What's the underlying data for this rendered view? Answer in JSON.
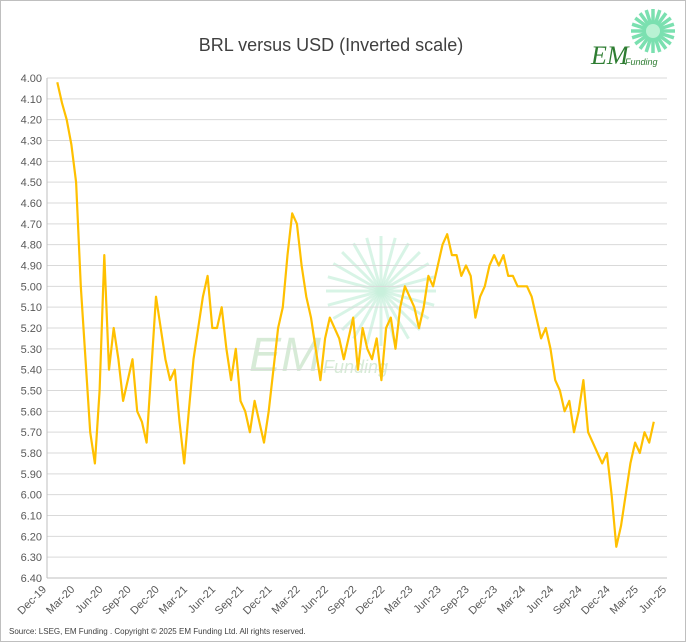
{
  "header": {
    "title": "BRL versus USD (Inverted scale)"
  },
  "logo": {
    "em_text": "EM",
    "funding_text": "Funding",
    "color": "#2e7d32",
    "accent": "#7be0b0"
  },
  "watermark": {
    "em_text": "EM",
    "funding_text": "Funding"
  },
  "footer": {
    "source": "Source: LSEG, EM Funding . Copyright © 2025 EM Funding Ltd. All rights reserved."
  },
  "chart_data": {
    "type": "line",
    "title": "BRL versus USD (Inverted scale)",
    "xlabel": "",
    "ylabel": "",
    "y_inverted": true,
    "ylim": [
      4.0,
      6.4
    ],
    "yticks": [
      "4.00",
      "4.10",
      "4.20",
      "4.30",
      "4.40",
      "4.50",
      "4.60",
      "4.70",
      "4.80",
      "4.90",
      "5.00",
      "5.10",
      "5.20",
      "5.30",
      "5.40",
      "5.50",
      "5.60",
      "5.70",
      "5.80",
      "5.90",
      "6.00",
      "6.10",
      "6.20",
      "6.30",
      "6.40"
    ],
    "xticks": [
      "Dec-19",
      "Mar-20",
      "Jun-20",
      "Sep-20",
      "Dec-20",
      "Mar-21",
      "Jun-21",
      "Sep-21",
      "Dec-21",
      "Mar-22",
      "Jun-22",
      "Sep-22",
      "Dec-22",
      "Mar-23",
      "Jun-23",
      "Sep-23",
      "Dec-23",
      "Mar-24",
      "Jun-24",
      "Sep-24",
      "Dec-24",
      "Mar-25",
      "Jun-25"
    ],
    "xlim": [
      "2019-12",
      "2025-06"
    ],
    "grid": true,
    "line_color": "#ffc000",
    "series": [
      {
        "x": [
          "2020-01",
          "2020-01",
          "2020-02",
          "2020-02",
          "2020-03",
          "2020-03",
          "2020-04",
          "2020-04",
          "2020-05",
          "2020-05",
          "2020-06",
          "2020-06",
          "2020-07",
          "2020-07",
          "2020-08",
          "2020-08",
          "2020-09",
          "2020-09",
          "2020-10",
          "2020-10",
          "2020-11",
          "2020-11",
          "2020-12",
          "2020-12",
          "2021-01",
          "2021-01",
          "2021-02",
          "2021-02",
          "2021-03",
          "2021-03",
          "2021-04",
          "2021-04",
          "2021-05",
          "2021-05",
          "2021-06",
          "2021-06",
          "2021-07",
          "2021-07",
          "2021-08",
          "2021-08",
          "2021-09",
          "2021-09",
          "2021-10",
          "2021-10",
          "2021-11",
          "2021-11",
          "2021-12",
          "2021-12",
          "2022-01",
          "2022-01",
          "2022-02",
          "2022-02",
          "2022-03",
          "2022-03",
          "2022-04",
          "2022-04",
          "2022-05",
          "2022-05",
          "2022-06",
          "2022-06",
          "2022-07",
          "2022-07",
          "2022-08",
          "2022-08",
          "2022-09",
          "2022-09",
          "2022-10",
          "2022-10",
          "2022-11",
          "2022-11",
          "2022-12",
          "2022-12",
          "2023-01",
          "2023-01",
          "2023-02",
          "2023-02",
          "2023-03",
          "2023-03",
          "2023-04",
          "2023-04",
          "2023-05",
          "2023-05",
          "2023-06",
          "2023-06",
          "2023-07",
          "2023-07",
          "2023-08",
          "2023-08",
          "2023-09",
          "2023-09",
          "2023-10",
          "2023-10",
          "2023-11",
          "2023-11",
          "2023-12",
          "2023-12",
          "2024-01",
          "2024-01",
          "2024-02",
          "2024-02",
          "2024-03",
          "2024-03",
          "2024-04",
          "2024-04",
          "2024-05",
          "2024-05",
          "2024-06",
          "2024-06",
          "2024-07",
          "2024-07",
          "2024-08",
          "2024-08",
          "2024-09",
          "2024-09",
          "2024-10",
          "2024-10",
          "2024-11",
          "2024-11",
          "2024-12",
          "2024-12",
          "2025-01",
          "2025-01",
          "2025-02",
          "2025-02",
          "2025-03",
          "2025-03",
          "2025-04",
          "2025-04"
        ],
        "values": [
          4.02,
          4.12,
          4.2,
          4.32,
          4.5,
          5.0,
          5.35,
          5.7,
          5.85,
          5.5,
          4.85,
          5.4,
          5.2,
          5.35,
          5.55,
          5.45,
          5.35,
          5.6,
          5.65,
          5.75,
          5.4,
          5.05,
          5.2,
          5.35,
          5.45,
          5.4,
          5.65,
          5.85,
          5.6,
          5.35,
          5.2,
          5.05,
          4.95,
          5.2,
          5.2,
          5.1,
          5.3,
          5.45,
          5.3,
          5.55,
          5.6,
          5.7,
          5.55,
          5.65,
          5.75,
          5.6,
          5.4,
          5.2,
          5.1,
          4.85,
          4.65,
          4.7,
          4.9,
          5.05,
          5.15,
          5.3,
          5.45,
          5.25,
          5.15,
          5.2,
          5.25,
          5.35,
          5.25,
          5.15,
          5.4,
          5.2,
          5.3,
          5.35,
          5.25,
          5.45,
          5.2,
          5.15,
          5.3,
          5.1,
          5.0,
          5.05,
          5.1,
          5.2,
          5.1,
          4.95,
          5.0,
          4.9,
          4.8,
          4.75,
          4.85,
          4.85,
          4.95,
          4.9,
          4.95,
          5.15,
          5.05,
          5.0,
          4.9,
          4.85,
          4.9,
          4.85,
          4.95,
          4.95,
          5.0,
          5.0,
          5.0,
          5.05,
          5.15,
          5.25,
          5.2,
          5.3,
          5.45,
          5.5,
          5.6,
          5.55,
          5.7,
          5.6,
          5.45,
          5.7,
          5.75,
          5.8,
          5.85,
          5.8,
          6.0,
          6.25,
          6.15,
          6.0,
          5.85,
          5.75,
          5.8,
          5.7,
          5.75,
          5.65
        ]
      }
    ]
  }
}
